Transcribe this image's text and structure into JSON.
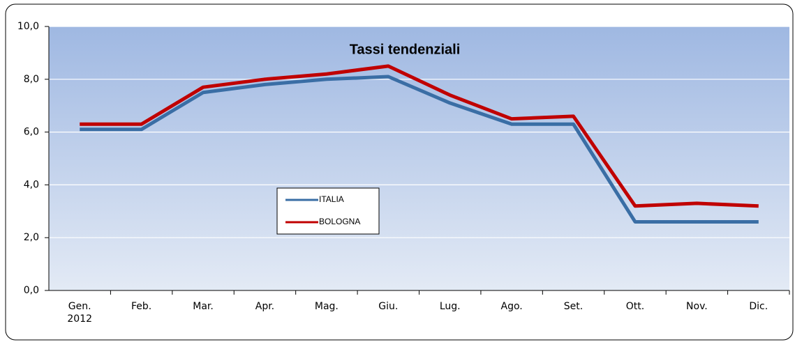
{
  "chart_data": {
    "type": "line",
    "title": "Tassi tendenziali",
    "categories": [
      "Gen.\n2012",
      "Feb.",
      "Mar.",
      "Apr.",
      "Mag.",
      "Giu.",
      "Lug.",
      "Ago.",
      "Set.",
      "Ott.",
      "Nov.",
      "Dic."
    ],
    "series": [
      {
        "name": "ITALIA",
        "color": "#3a6ea5",
        "values": [
          6.1,
          6.1,
          7.5,
          7.8,
          8.0,
          8.1,
          7.1,
          6.3,
          6.3,
          2.6,
          2.6,
          2.6
        ]
      },
      {
        "name": "BOLOGNA",
        "color": "#c00000",
        "values": [
          6.3,
          6.3,
          7.7,
          8.0,
          8.2,
          8.5,
          7.4,
          6.5,
          6.6,
          3.2,
          3.3,
          3.2
        ]
      }
    ],
    "ylim": [
      0,
      10
    ],
    "yticks": [
      {
        "value": 0,
        "label": "0,0"
      },
      {
        "value": 2,
        "label": "2,0"
      },
      {
        "value": 4,
        "label": "4,0"
      },
      {
        "value": 6,
        "label": "6,0"
      },
      {
        "value": 8,
        "label": "8,0"
      },
      {
        "value": 10,
        "label": "10,0"
      }
    ],
    "grid": true
  }
}
